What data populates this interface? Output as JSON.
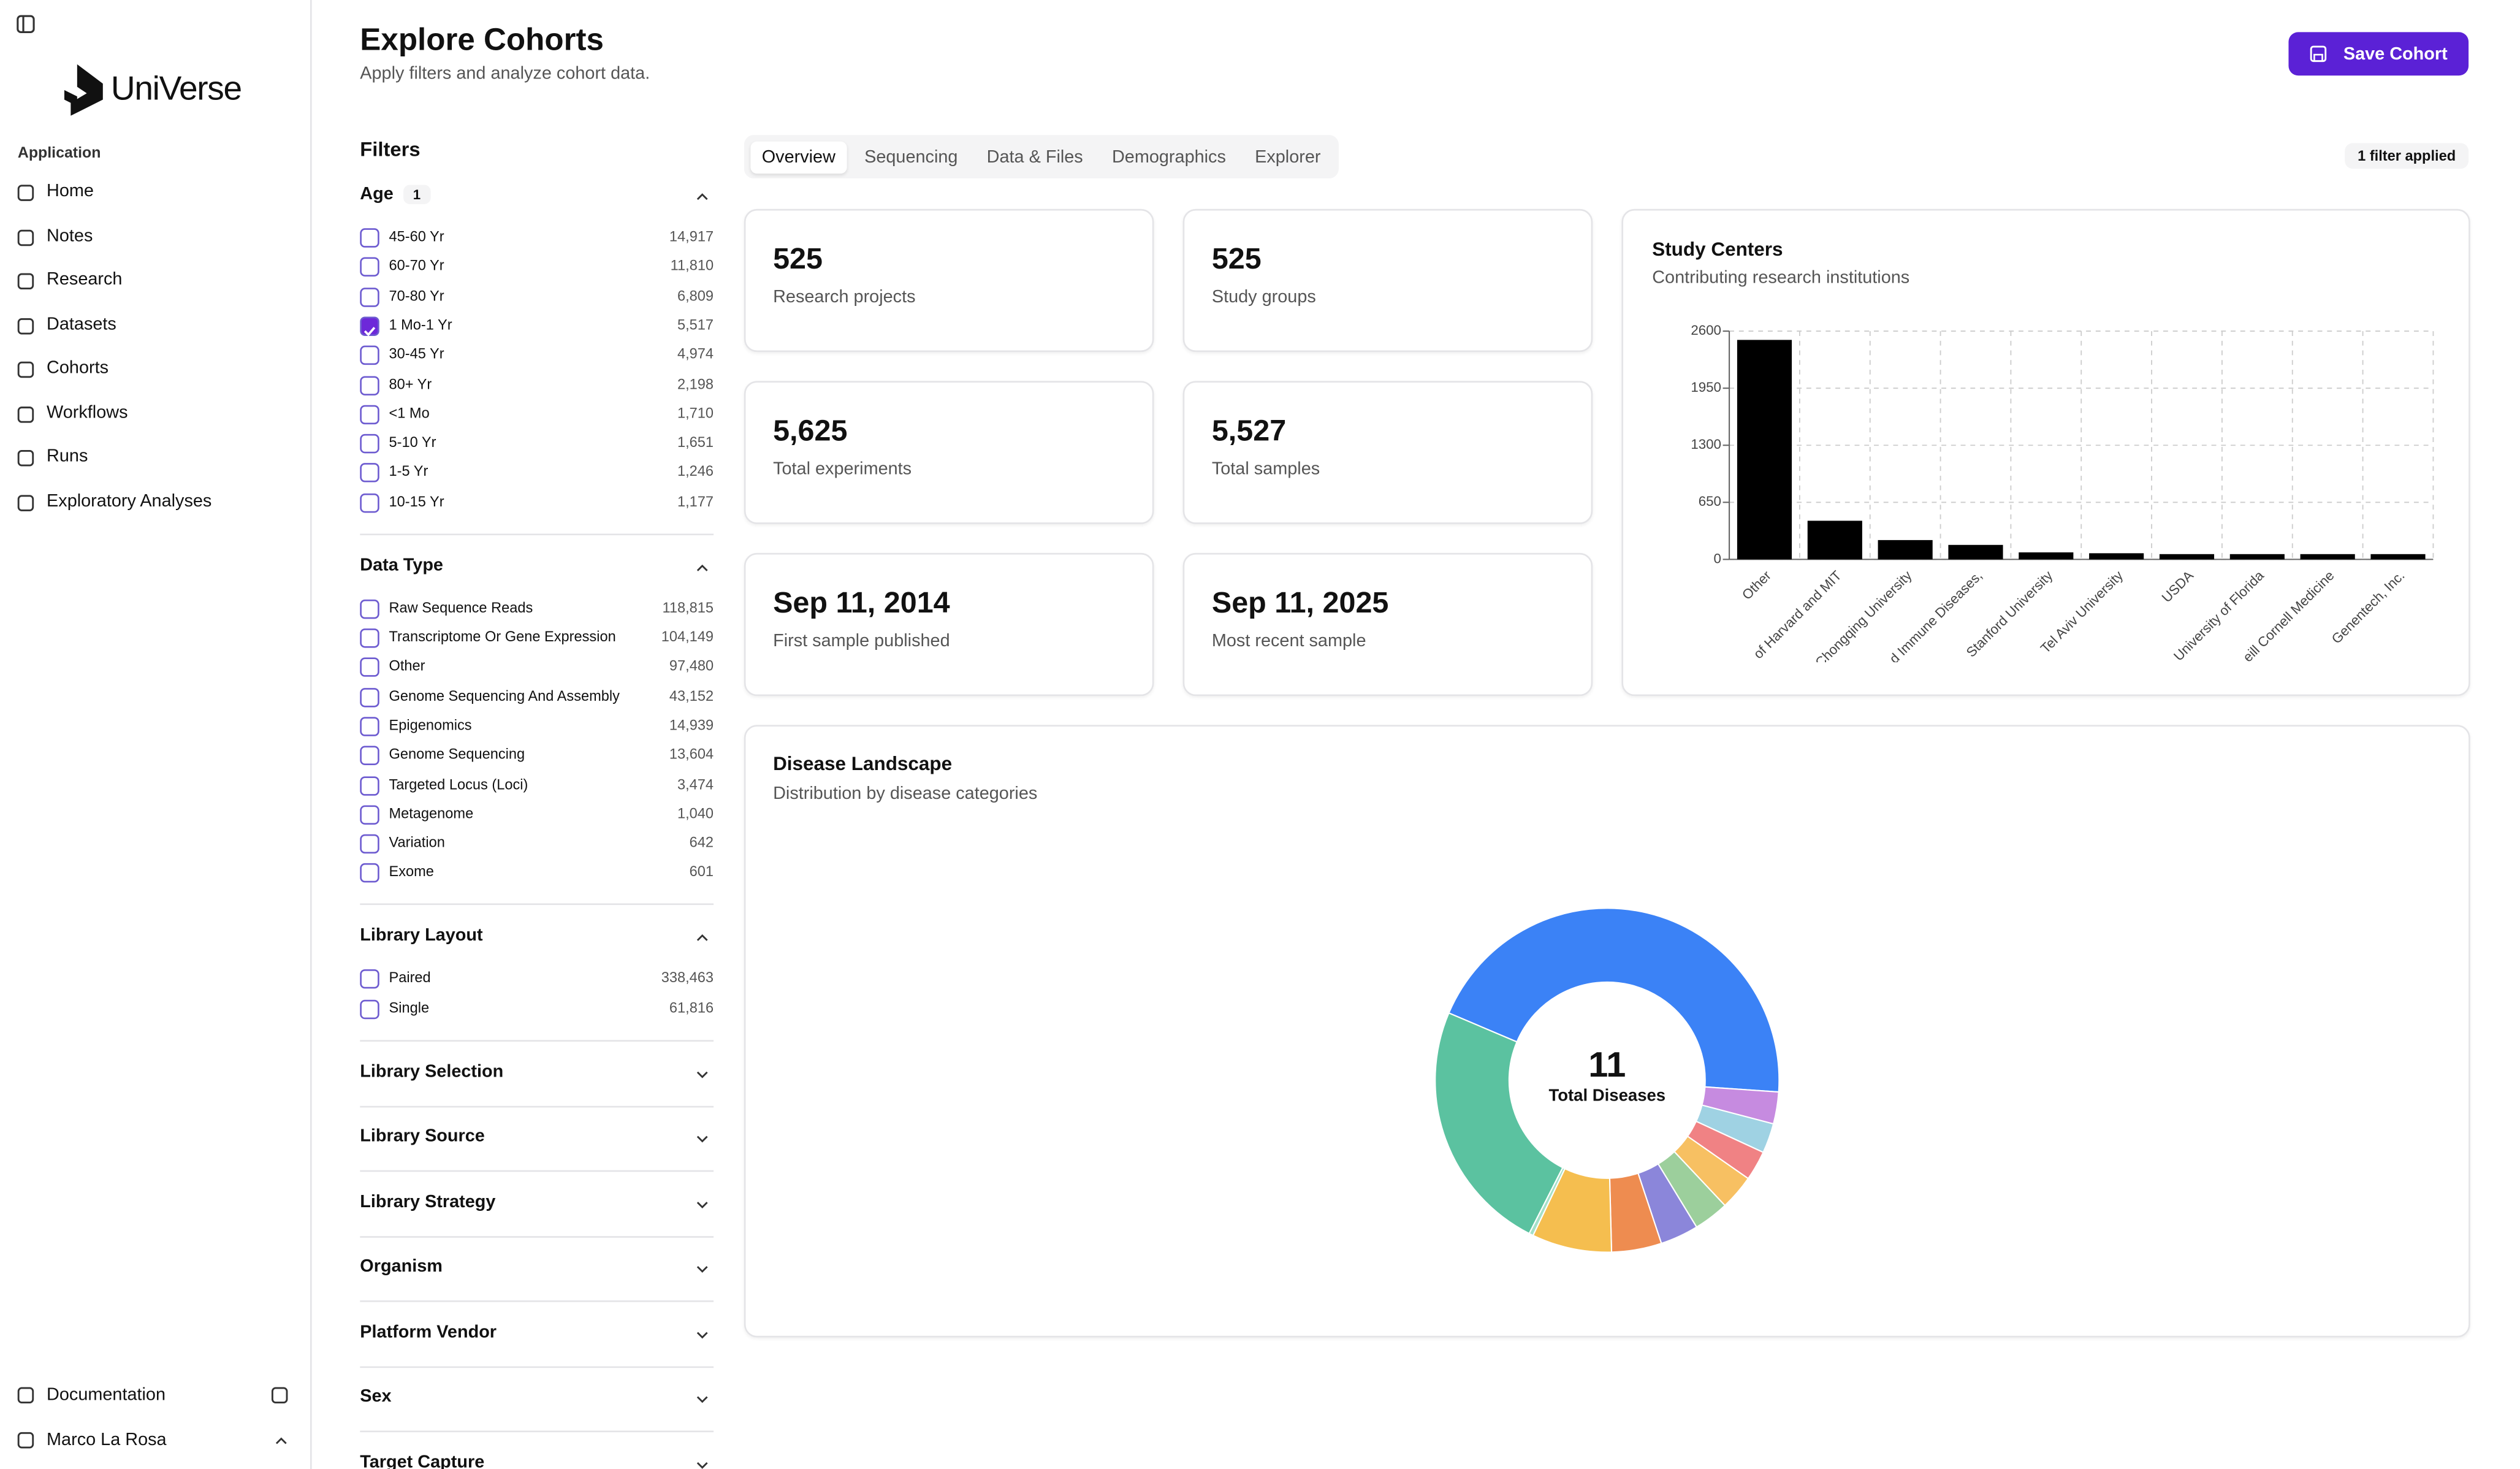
{
  "sidebar": {
    "brand": "UniVerse",
    "section": "Application",
    "nav": [
      "Home",
      "Notes",
      "Research",
      "Datasets",
      "Cohorts",
      "Workflows",
      "Runs",
      "Exploratory Analyses"
    ],
    "docs": "Documentation",
    "user": "Marco La Rosa"
  },
  "header": {
    "title": "Explore Cohorts",
    "subtitle": "Apply filters and analyze cohort data.",
    "button": "Save Cohort"
  },
  "filters": {
    "title": "Filters",
    "groups": [
      {
        "name": "Age",
        "badge": "1",
        "expanded": true,
        "options": [
          {
            "label": "45-60 Yr",
            "count": "14,917"
          },
          {
            "label": "60-70 Yr",
            "count": "11,810"
          },
          {
            "label": "70-80 Yr",
            "count": "6,809"
          },
          {
            "label": "1 Mo-1 Yr",
            "count": "5,517",
            "checked": true
          },
          {
            "label": "30-45 Yr",
            "count": "4,974"
          },
          {
            "label": "80+ Yr",
            "count": "2,198"
          },
          {
            "label": "<1 Mo",
            "count": "1,710"
          },
          {
            "label": "5-10 Yr",
            "count": "1,651"
          },
          {
            "label": "1-5 Yr",
            "count": "1,246"
          },
          {
            "label": "10-15 Yr",
            "count": "1,177"
          }
        ]
      },
      {
        "name": "Data Type",
        "expanded": true,
        "options": [
          {
            "label": "Raw Sequence Reads",
            "count": "118,815"
          },
          {
            "label": "Transcriptome Or Gene Expression",
            "count": "104,149"
          },
          {
            "label": "Other",
            "count": "97,480"
          },
          {
            "label": "Genome Sequencing And Assembly",
            "count": "43,152"
          },
          {
            "label": "Epigenomics",
            "count": "14,939"
          },
          {
            "label": "Genome Sequencing",
            "count": "13,604"
          },
          {
            "label": "Targeted Locus (Loci)",
            "count": "3,474"
          },
          {
            "label": "Metagenome",
            "count": "1,040"
          },
          {
            "label": "Variation",
            "count": "642"
          },
          {
            "label": "Exome",
            "count": "601"
          }
        ]
      },
      {
        "name": "Library Layout",
        "expanded": true,
        "options": [
          {
            "label": "Paired",
            "count": "338,463"
          },
          {
            "label": "Single",
            "count": "61,816"
          }
        ]
      },
      {
        "name": "Library Selection",
        "expanded": false
      },
      {
        "name": "Library Source",
        "expanded": false
      },
      {
        "name": "Library Strategy",
        "expanded": false
      },
      {
        "name": "Organism",
        "expanded": false
      },
      {
        "name": "Platform Vendor",
        "expanded": false
      },
      {
        "name": "Sex",
        "expanded": false
      },
      {
        "name": "Target Capture",
        "expanded": false
      }
    ]
  },
  "tabs": {
    "items": [
      "Overview",
      "Sequencing",
      "Data & Files",
      "Demographics",
      "Explorer"
    ],
    "active": 0,
    "status": "1 filter applied"
  },
  "stats": [
    {
      "value": "525",
      "label": "Research projects"
    },
    {
      "value": "525",
      "label": "Study groups"
    },
    {
      "value": "5,625",
      "label": "Total experiments"
    },
    {
      "value": "5,527",
      "label": "Total samples"
    },
    {
      "value": "Sep 11, 2014",
      "label": "First sample published"
    },
    {
      "value": "Sep 11, 2025",
      "label": "Most recent sample"
    }
  ],
  "study_centers": {
    "title": "Study Centers",
    "subtitle": "Contributing research institutions",
    "chart_data": {
      "type": "bar",
      "categories": [
        "Other",
        "of Harvard and MIT",
        "Chongqing University",
        "d Immune Diseases,",
        "Stanford University",
        "Tel Aviv University",
        "USDA",
        "University of Florida",
        "eill Cornell Medicine",
        "Genentech, Inc."
      ],
      "values": [
        2500,
        440,
        220,
        165,
        80,
        70,
        60,
        60,
        60,
        60
      ],
      "color": "#000000",
      "ylim": [
        0,
        2600
      ],
      "yticks": [
        0,
        650,
        1300,
        1950,
        2600
      ],
      "grid": true
    }
  },
  "disease_landscape": {
    "title": "Disease Landscape",
    "subtitle": "Distribution by disease categories",
    "chart_data": {
      "type": "pie",
      "center_value": "11",
      "center_label": "Total Diseases",
      "values": [
        44.7,
        3,
        2.8,
        2.8,
        3.3,
        3.3,
        3.6,
        4.7,
        7.5,
        0.4,
        23.9
      ],
      "colors": [
        "#3b82f6",
        "#c68be0",
        "#9fd2e3",
        "#f08284",
        "#f7c062",
        "#9ccf9c",
        "#8b86da",
        "#ee8c50",
        "#f5be4f",
        "#a3e0c8",
        "#5bc2a0"
      ]
    }
  }
}
